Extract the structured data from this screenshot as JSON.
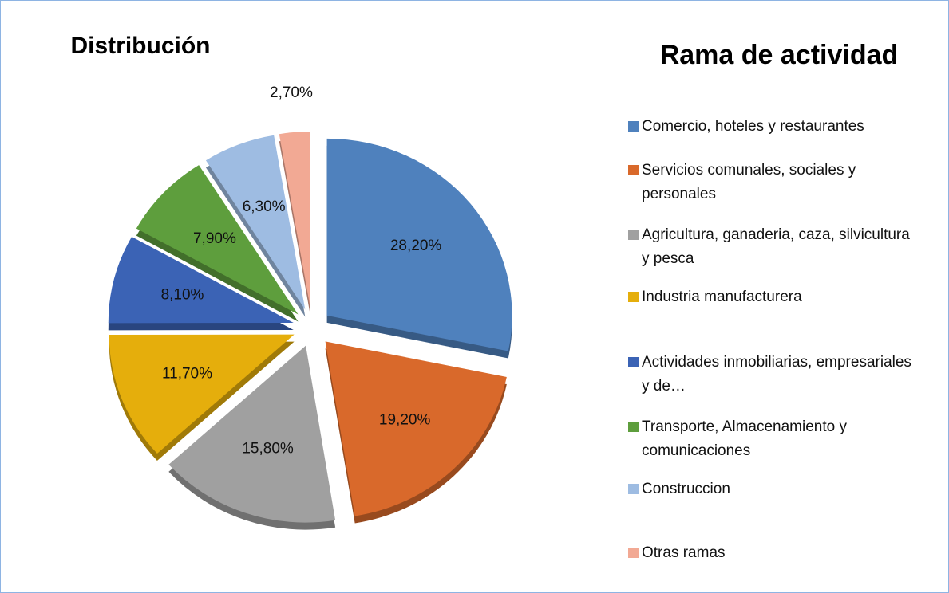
{
  "chart_data": {
    "type": "pie",
    "title": "Distribución",
    "legend_title": "Rama de actividad",
    "categories": [
      "Comercio, hoteles y restaurantes",
      "Servicios comunales, sociales y personales",
      "Agricultura, ganaderia, caza, silvicultura y pesca",
      "Industria manufacturera",
      "Actividades inmobiliarias, empresariales y de…",
      "Transporte, Almacenamiento y comunicaciones",
      "Construccion",
      "Otras ramas"
    ],
    "values": [
      28.2,
      19.2,
      15.8,
      11.7,
      8.1,
      7.9,
      6.3,
      2.7
    ],
    "value_labels": [
      "28,20%",
      "19,20%",
      "15,80%",
      "11,70%",
      "8,10%",
      "7,90%",
      "6,30%",
      "2,70%"
    ],
    "colors": [
      "#4f81bd",
      "#d9692b",
      "#a0a0a0",
      "#e5ae0c",
      "#3b63b5",
      "#5e9e3d",
      "#9ebce2",
      "#f2a994"
    ],
    "legend": "right"
  }
}
